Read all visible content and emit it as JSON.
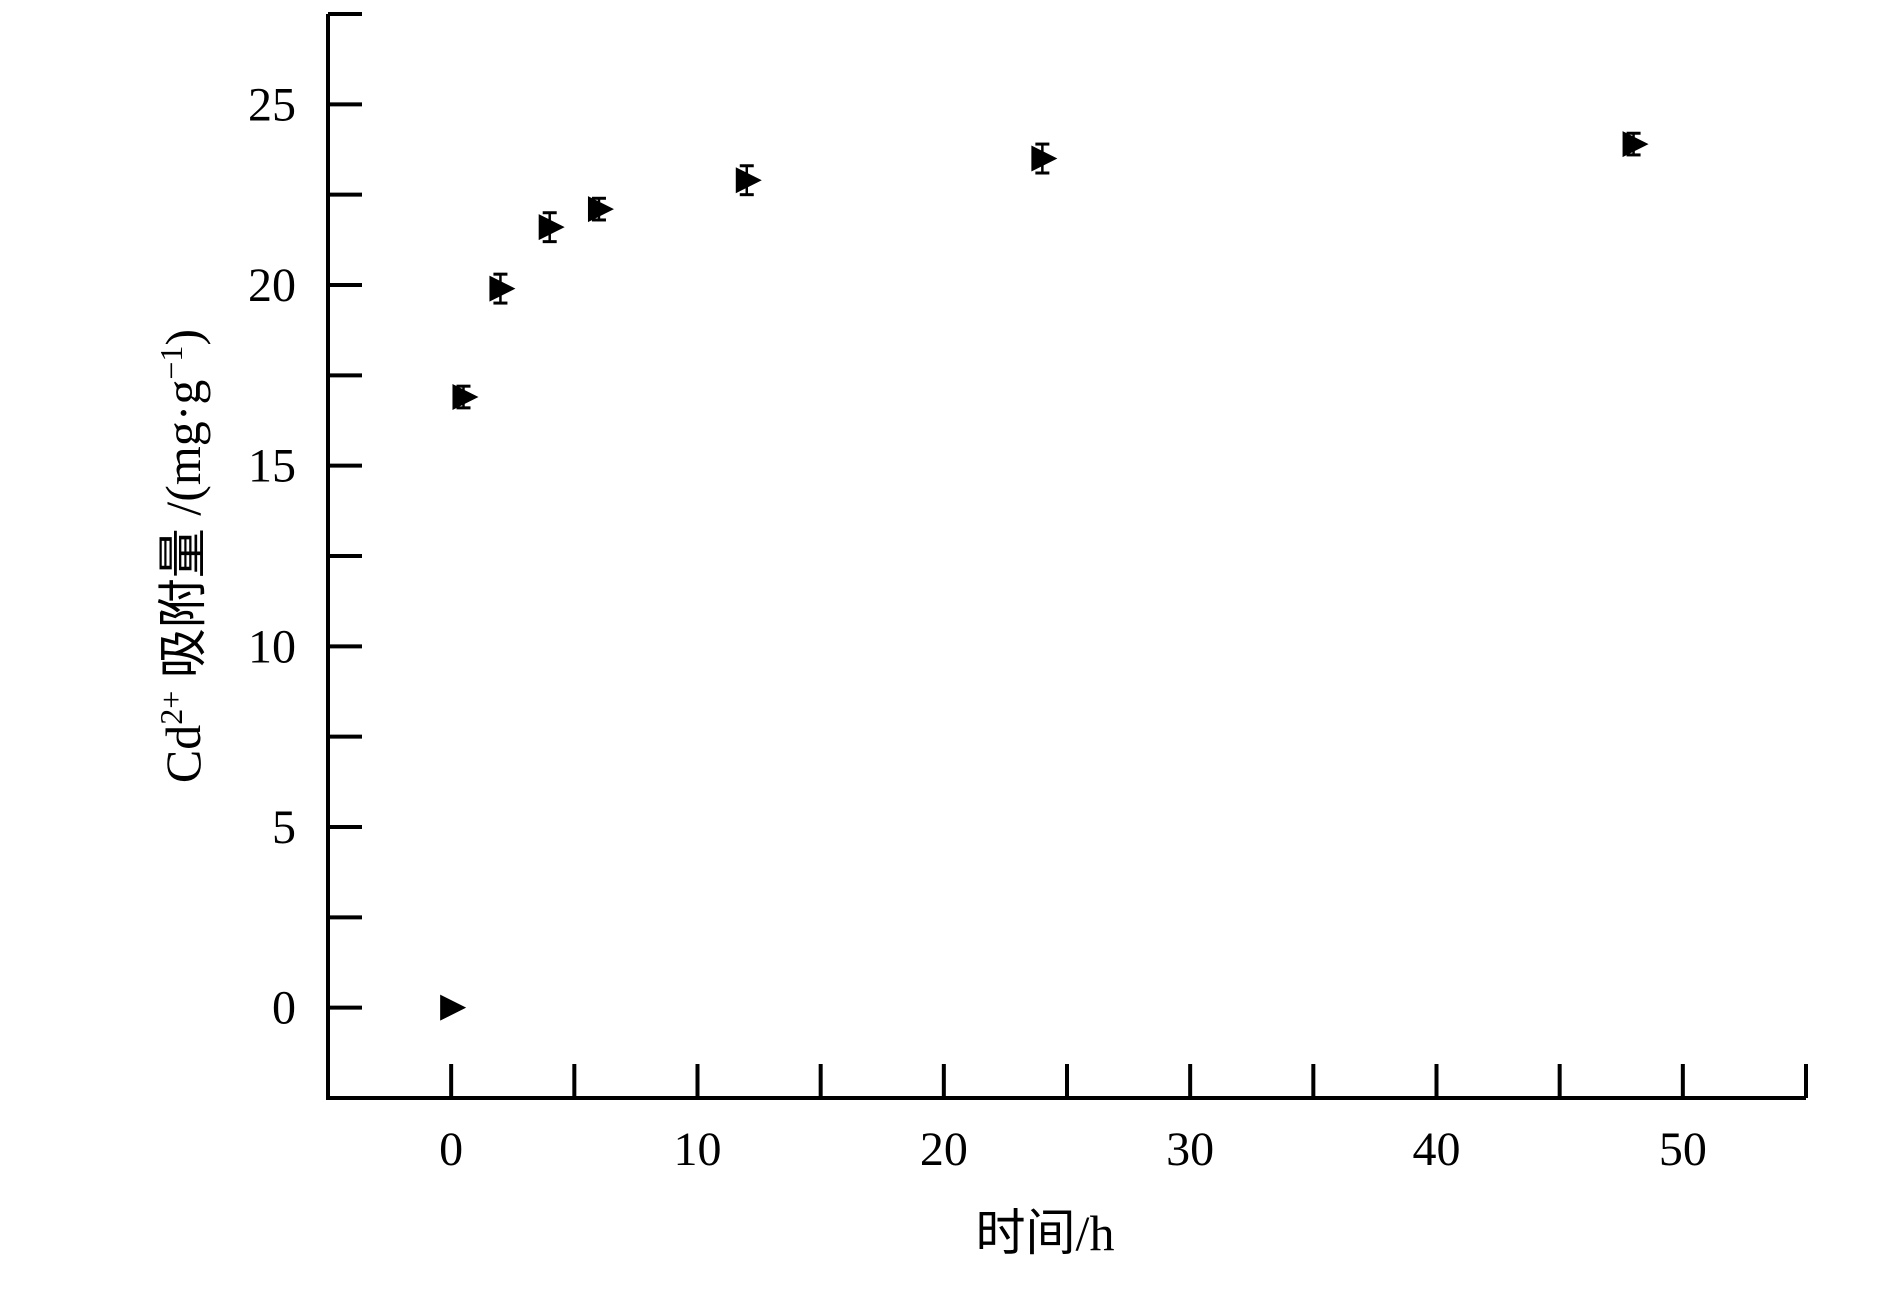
{
  "chart_data": {
    "type": "scatter",
    "title": "",
    "xlabel": "时间/h",
    "ylabel_main": "Cd",
    "ylabel_sup": "2+",
    "ylabel_rest": " 吸附量 /(mg·g",
    "ylabel_sup2": "−1",
    "ylabel_end": ")",
    "xlim": [
      -5,
      55
    ],
    "ylim": [
      -2.5,
      27.5
    ],
    "x_ticks": [
      0,
      10,
      20,
      30,
      40,
      50
    ],
    "x_tick_labels": [
      "0",
      "10",
      "20",
      "30",
      "40",
      "50"
    ],
    "y_ticks": [
      0,
      5,
      10,
      15,
      20,
      25
    ],
    "y_tick_labels": [
      "0",
      "5",
      "10",
      "15",
      "20",
      "25"
    ],
    "grid": false,
    "marker": "right-triangle",
    "color": "#000000",
    "series": [
      {
        "x": [
          0,
          0.5,
          2,
          4,
          6,
          12,
          24,
          48
        ],
        "y": [
          0,
          16.9,
          19.9,
          21.6,
          22.1,
          22.9,
          23.5,
          23.9
        ],
        "error": [
          0,
          0.3,
          0.4,
          0.4,
          0.3,
          0.4,
          0.4,
          0.3
        ]
      }
    ]
  }
}
